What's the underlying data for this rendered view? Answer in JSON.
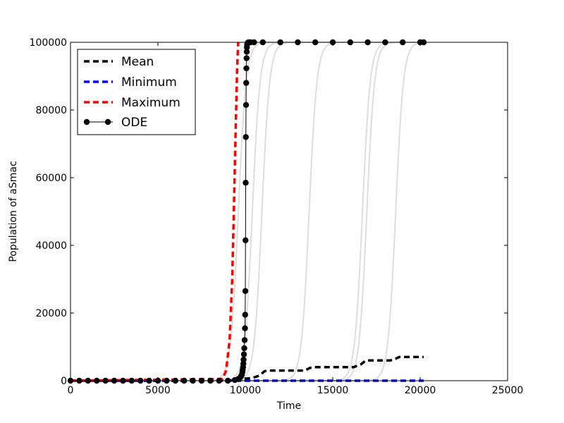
{
  "chart_data": {
    "type": "line",
    "xlabel": "Time",
    "ylabel": "Population of aSmac",
    "xlim": [
      0,
      25000
    ],
    "ylim": [
      0,
      100000
    ],
    "xticks": [
      0,
      5000,
      10000,
      15000,
      20000,
      25000
    ],
    "yticks": [
      0,
      20000,
      40000,
      60000,
      80000,
      100000
    ],
    "xtick_labels": [
      "0",
      "5000",
      "10000",
      "15000",
      "20000",
      "25000"
    ],
    "ytick_labels": [
      "0",
      "20000",
      "40000",
      "60000",
      "80000",
      "100000"
    ],
    "grid": false,
    "legend_position": "top-left",
    "series": [
      {
        "name": "Mean",
        "style": "dashed",
        "color": "#000000",
        "x": [
          0,
          8800,
          9600,
          9800,
          10000,
          10400,
          10800,
          11100,
          11300,
          13400,
          13700,
          13900,
          16200,
          16600,
          16900,
          18300,
          18600,
          18800,
          20200
        ],
        "y": [
          0,
          0,
          200,
          500,
          600,
          800,
          1500,
          2800,
          3000,
          3000,
          3800,
          4000,
          4000,
          4800,
          6000,
          6000,
          6500,
          7000,
          7000
        ]
      },
      {
        "name": "Minimum",
        "style": "dashed",
        "color": "#0000ff",
        "x": [
          0,
          20200
        ],
        "y": [
          0,
          0
        ]
      },
      {
        "name": "Maximum",
        "style": "dashed",
        "color": "#ff0000",
        "x": [
          0,
          8700,
          8900,
          9100,
          9250,
          9350,
          9450,
          9530,
          9590
        ],
        "y": [
          0,
          500,
          3000,
          12000,
          30000,
          52000,
          75000,
          92000,
          100000
        ]
      },
      {
        "name": "ODE",
        "style": "solid-markers",
        "color": "#000000",
        "x": [
          0,
          500,
          1000,
          1500,
          2000,
          2500,
          3000,
          3500,
          4000,
          4500,
          5000,
          5500,
          6000,
          6500,
          7000,
          7500,
          8000,
          8500,
          9000,
          9400,
          9600,
          9700,
          9750,
          9800,
          9830,
          9850,
          9870,
          9890,
          9900,
          9920,
          9940,
          9960,
          9980,
          9990,
          10000,
          10010,
          10020,
          10030,
          10040,
          10050,
          10060,
          10070,
          10080,
          10090,
          10100,
          10120,
          10140,
          10160,
          10200,
          10300,
          10500,
          11000,
          12000,
          13000,
          14000,
          15000,
          16000,
          17000,
          18000,
          19000,
          20000,
          20200
        ],
        "y": [
          0,
          0,
          0,
          0,
          0,
          0,
          0,
          0,
          0,
          0,
          0,
          0,
          0,
          0,
          0,
          0,
          0,
          0,
          0,
          200,
          500,
          900,
          1300,
          1800,
          2500,
          3200,
          4000,
          5000,
          6200,
          7800,
          9600,
          12000,
          15500,
          19500,
          26500,
          41500,
          58500,
          72000,
          81500,
          88000,
          92300,
          95300,
          97200,
          98500,
          99300,
          99700,
          99850,
          99950,
          100000,
          100000,
          100000,
          100000,
          100000,
          100000,
          100000,
          100000,
          100000,
          100000,
          100000,
          100000,
          100000,
          100000
        ]
      }
    ],
    "trajectories": [
      {
        "color": "#dddddd",
        "x0": 9600,
        "k": 0.0045
      },
      {
        "color": "#dddddd",
        "x0": 10400,
        "k": 0.0045
      },
      {
        "color": "#dddddd",
        "x0": 10950,
        "k": 0.0045
      },
      {
        "color": "#dddddd",
        "x0": 13650,
        "k": 0.0045
      },
      {
        "color": "#dddddd",
        "x0": 16700,
        "k": 0.0045
      },
      {
        "color": "#dddddd",
        "x0": 16950,
        "k": 0.0045
      },
      {
        "color": "#dddddd",
        "x0": 18600,
        "k": 0.0045
      }
    ]
  }
}
